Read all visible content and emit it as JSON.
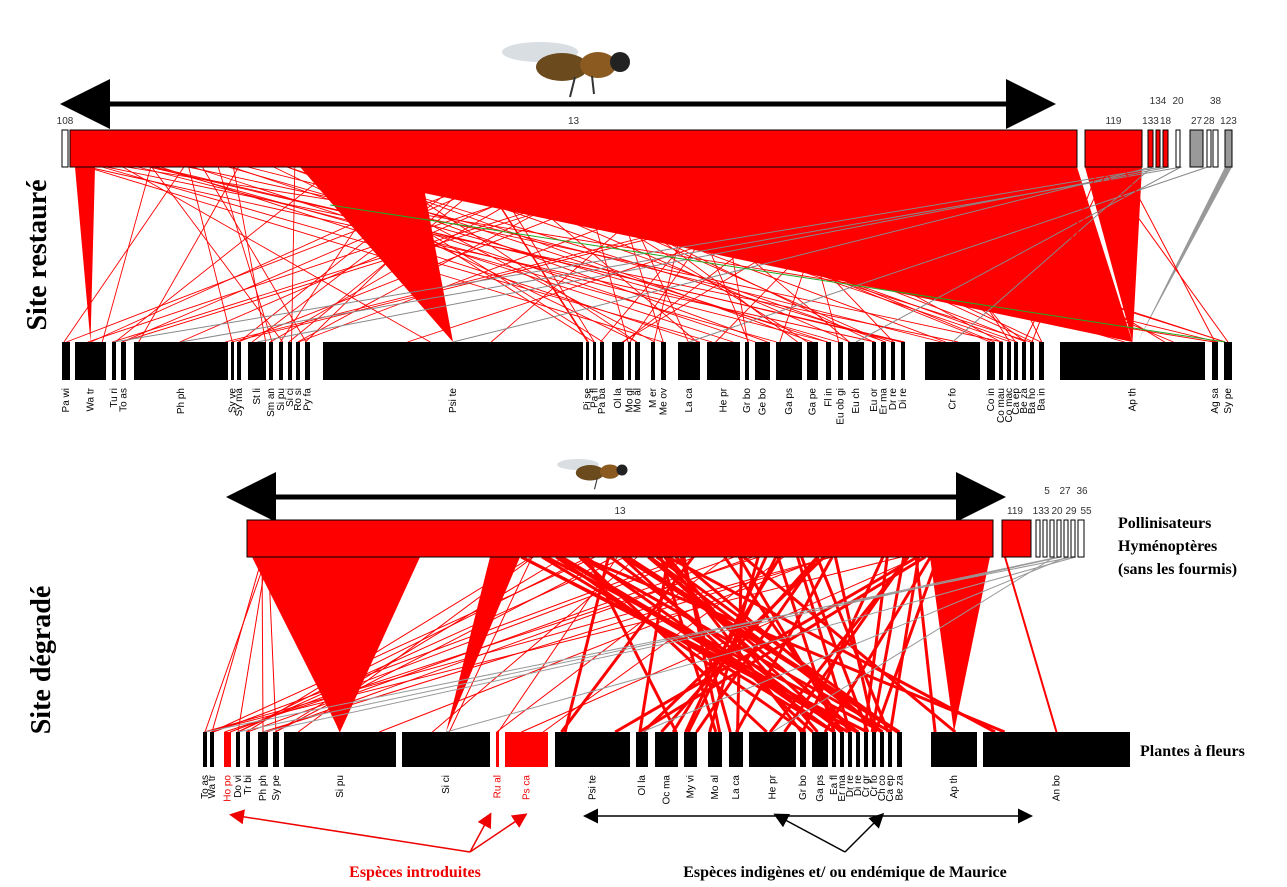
{
  "restored": {
    "title": "Site restauré",
    "pollinators": [
      {
        "label": "108"
      },
      {
        "label": "13"
      },
      {
        "label": "119"
      },
      {
        "label": "133"
      },
      {
        "label": "134"
      },
      {
        "label": "18"
      },
      {
        "label": "20"
      },
      {
        "label": "27"
      },
      {
        "label": "28"
      },
      {
        "label": "38"
      },
      {
        "label": "123"
      }
    ],
    "plants": [
      {
        "label": "Pa wi"
      },
      {
        "label": "Wa tr"
      },
      {
        "label": "Tu ri"
      },
      {
        "label": "To as"
      },
      {
        "label": "Ph ph"
      },
      {
        "label": "Sy ve"
      },
      {
        "label": "Sy ma"
      },
      {
        "label": "St li"
      },
      {
        "label": "Sm an"
      },
      {
        "label": "Si pu"
      },
      {
        "label": "Si ci"
      },
      {
        "label": "Ro si"
      },
      {
        "label": "Py fa"
      },
      {
        "label": "Psi te"
      },
      {
        "label": "Pi se"
      },
      {
        "label": "Pa fl"
      },
      {
        "label": "Pa ba"
      },
      {
        "label": "Ol la"
      },
      {
        "label": "Mo gl"
      },
      {
        "label": "Mo al"
      },
      {
        "label": "M er"
      },
      {
        "label": "Me ov"
      },
      {
        "label": "La ca"
      },
      {
        "label": "He pr"
      },
      {
        "label": "Gr bo"
      },
      {
        "label": "Ge bo"
      },
      {
        "label": "Ga ps"
      },
      {
        "label": "Ga pe"
      },
      {
        "label": "Fl in"
      },
      {
        "label": "Eu ob gi"
      },
      {
        "label": "Eu ch"
      },
      {
        "label": "Eu or"
      },
      {
        "label": "Er ma"
      },
      {
        "label": "Dr re"
      },
      {
        "label": "Di re"
      },
      {
        "label": "Cr fo"
      },
      {
        "label": "Co in"
      },
      {
        "label": "Co mau"
      },
      {
        "label": "Co mac"
      },
      {
        "label": "Ca ep"
      },
      {
        "label": "Be za"
      },
      {
        "label": "Ba ho"
      },
      {
        "label": "Ba in"
      },
      {
        "label": "Ap th"
      },
      {
        "label": "Ag sa"
      },
      {
        "label": "Sy pe"
      }
    ]
  },
  "degraded": {
    "title": "Site dégradé",
    "pollinators": [
      {
        "label": "13"
      },
      {
        "label": "119"
      },
      {
        "label": "133"
      },
      {
        "label": "5"
      },
      {
        "label": "20"
      },
      {
        "label": "27"
      },
      {
        "label": "29"
      },
      {
        "label": "36"
      },
      {
        "label": "55"
      }
    ],
    "plants": [
      {
        "label": "To as",
        "introduced": false
      },
      {
        "label": "Wa tr",
        "introduced": false
      },
      {
        "label": "Ho po",
        "introduced": true
      },
      {
        "label": "Do vi",
        "introduced": false
      },
      {
        "label": "Tr bi",
        "introduced": false
      },
      {
        "label": "Ph ph",
        "introduced": false
      },
      {
        "label": "Sy pe",
        "introduced": false
      },
      {
        "label": "Si pu",
        "introduced": false
      },
      {
        "label": "Si ci",
        "introduced": false
      },
      {
        "label": "Ru al",
        "introduced": true
      },
      {
        "label": "Ps ca",
        "introduced": true
      },
      {
        "label": "Psi te",
        "introduced": false
      },
      {
        "label": "Ol la",
        "introduced": false
      },
      {
        "label": "Oc ma",
        "introduced": false
      },
      {
        "label": "My vi",
        "introduced": false
      },
      {
        "label": "Mo al",
        "introduced": false
      },
      {
        "label": "La ca",
        "introduced": false
      },
      {
        "label": "He pr",
        "introduced": false
      },
      {
        "label": "Gr bo",
        "introduced": false
      },
      {
        "label": "Ga ps",
        "introduced": false
      },
      {
        "label": "Ea fl",
        "introduced": false
      },
      {
        "label": "Er ma",
        "introduced": false
      },
      {
        "label": "Dr re",
        "introduced": false
      },
      {
        "label": "Di re",
        "introduced": false
      },
      {
        "label": "Cr gr",
        "introduced": false
      },
      {
        "label": "Cr fo",
        "introduced": false
      },
      {
        "label": "Ch co",
        "introduced": false
      },
      {
        "label": "Ca ep",
        "introduced": false
      },
      {
        "label": "Be za",
        "introduced": false
      },
      {
        "label": "Ap th",
        "introduced": false
      },
      {
        "label": "An bo",
        "introduced": false
      }
    ]
  },
  "legend": {
    "pollinators": [
      "Pollinisateurs",
      "Hyménoptères",
      "(sans les fourmis)"
    ],
    "plants": "Plantes à fleurs",
    "introduced": "Espèces introduites",
    "native": "Espèces indigènes et/ ou endémique de Maurice"
  }
}
